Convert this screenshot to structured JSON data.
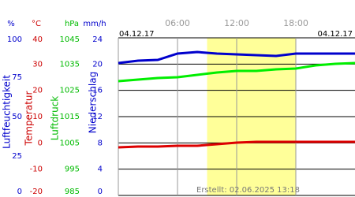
{
  "chart_data": {
    "type": "line",
    "start_label": "04.12.17",
    "end_label": "04.12.17",
    "footer": "Erstellt: 02.06.2025 13:18",
    "xlim": [
      0,
      24
    ],
    "xticks": [
      {
        "value": 6,
        "label": "06:00"
      },
      {
        "value": 12,
        "label": "12:00"
      },
      {
        "value": 18,
        "label": "18:00"
      }
    ],
    "shaded_range": [
      9,
      18
    ],
    "grid": true,
    "axes": [
      {
        "unit": "%",
        "label": "Luftfeuchtigkeit",
        "color": "#0000cc",
        "ylim": [
          0,
          100
        ],
        "yticks": [
          0,
          25,
          50,
          75,
          100
        ]
      },
      {
        "unit": "°C",
        "label": "Temperatur",
        "color": "#cc0000",
        "ylim": [
          -20,
          40
        ],
        "yticks": [
          -20,
          -10,
          0,
          10,
          20,
          30,
          40
        ]
      },
      {
        "unit": "hPa",
        "label": "Luftdruck",
        "color": "#00bb00",
        "ylim": [
          985,
          1045
        ],
        "yticks": [
          985,
          995,
          1005,
          1015,
          1025,
          1035,
          1045
        ]
      },
      {
        "unit": "mm/h",
        "label": "Niederschlag",
        "color": "#0000cc",
        "ylim": [
          0,
          24
        ],
        "yticks": [
          0,
          4,
          8,
          12,
          16,
          20,
          24
        ]
      }
    ],
    "x": [
      0,
      2,
      4,
      6,
      8,
      10,
      12,
      14,
      16,
      18,
      20,
      22,
      24
    ],
    "series": [
      {
        "axis": 0,
        "color": "#0000cc",
        "values": [
          84,
          85.5,
          86,
          90,
          91,
          90,
          89.5,
          89,
          88.5,
          90,
          90,
          90,
          90
        ]
      },
      {
        "axis": 2,
        "color": "#00ee00",
        "values": [
          1028.5,
          1029.1,
          1029.7,
          1030,
          1030.9,
          1031.8,
          1032.4,
          1032.4,
          1033,
          1033.3,
          1034.5,
          1035.1,
          1035.4
        ]
      },
      {
        "axis": 1,
        "color": "#dd0000",
        "values": [
          -1.7,
          -1.4,
          -1.4,
          -1.1,
          -1.1,
          -0.5,
          0.1,
          0.4,
          0.4,
          0.4,
          0.4,
          0.4,
          0.4
        ]
      }
    ]
  }
}
